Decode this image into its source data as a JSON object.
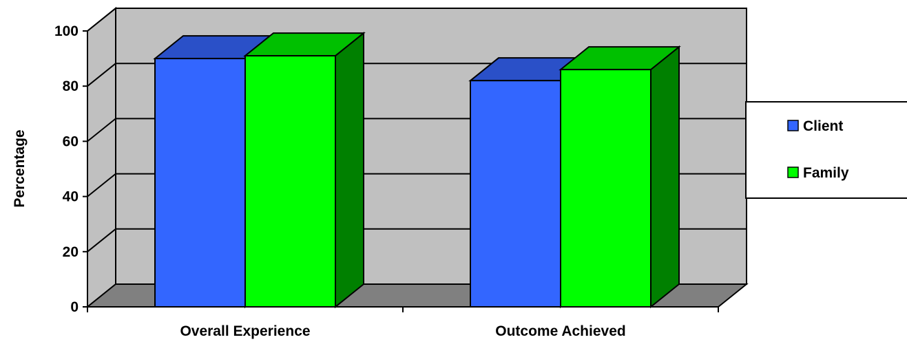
{
  "chart_data": {
    "type": "bar",
    "categories": [
      "Overall Experience",
      "Outcome Achieved"
    ],
    "series": [
      {
        "name": "Client",
        "values": [
          90,
          82
        ]
      },
      {
        "name": "Family",
        "values": [
          91,
          86
        ]
      }
    ],
    "ylabel": "Percentage",
    "xlabel": "",
    "ylim": [
      0,
      100
    ],
    "yticks": [
      0,
      20,
      40,
      60,
      80,
      100
    ],
    "grid": true,
    "legend_position": "right",
    "colors": {
      "Client": {
        "front": "#3366FF",
        "top": "#2A50C8",
        "side": "#2A50C8"
      },
      "Family": {
        "front": "#00FF00",
        "top": "#00C000",
        "side": "#008000"
      },
      "wall": "#C0C0C0",
      "floor": "#808080"
    }
  }
}
